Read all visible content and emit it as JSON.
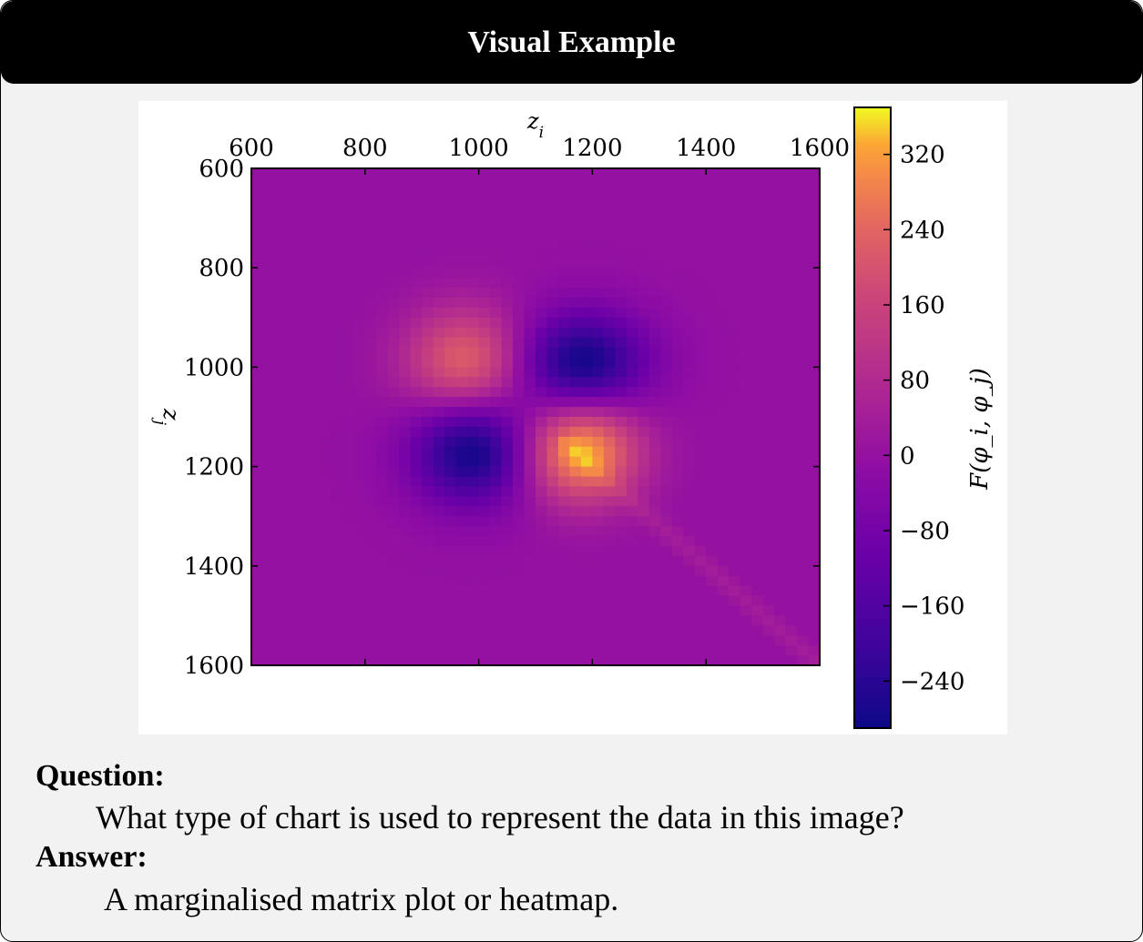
{
  "header": {
    "title": "Visual Example"
  },
  "question": {
    "label": "Question:",
    "text": "What type of chart is used to represent the data in this image?"
  },
  "answer": {
    "label": "Answer:",
    "text": "A marginalised matrix plot or heatmap."
  },
  "chart_data": {
    "type": "heatmap",
    "xlabel": "z_i",
    "ylabel": "z_j",
    "colorbar_label": "F(φ_i, φ_j)",
    "colormap": "plasma",
    "x_ticks": [
      600,
      800,
      1000,
      1200,
      1400,
      1600
    ],
    "y_ticks": [
      600,
      800,
      1000,
      1200,
      1400,
      1600
    ],
    "x_range": [
      600,
      1600
    ],
    "y_range": [
      600,
      1600
    ],
    "x_axis_position": "top",
    "y_axis_inverted": true,
    "colorbar_range": [
      -290,
      370
    ],
    "colorbar_ticks": [
      320,
      240,
      160,
      80,
      0,
      -80,
      -160,
      -240
    ],
    "colorbar_tick_labels": [
      "320",
      "240",
      "160",
      "80",
      "0",
      "−80",
      "−160",
      "−240"
    ],
    "grid_cells": 50,
    "features": [
      {
        "x": 980,
        "y": 990,
        "value": 240,
        "sx": 75,
        "sy": 75
      },
      {
        "x": 1180,
        "y": 1170,
        "value": 340,
        "sx": 70,
        "sy": 70
      },
      {
        "x": 1180,
        "y": 990,
        "value": -290,
        "sx": 80,
        "sy": 70
      },
      {
        "x": 990,
        "y": 1170,
        "value": -290,
        "sx": 75,
        "sy": 75
      }
    ],
    "diagonal_ridge": {
      "value": 65,
      "from": 1150,
      "to": 1600
    }
  }
}
